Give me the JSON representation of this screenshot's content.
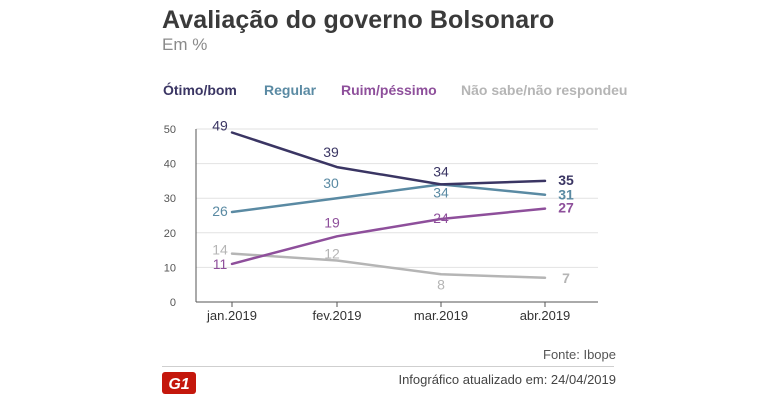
{
  "header": {
    "title": "Avaliação do governo Bolsonaro",
    "subtitle": "Em %"
  },
  "colors": {
    "otimo_bom": "#3a3563",
    "regular": "#5a8aa3",
    "ruim_pessimo": "#8e4f9b",
    "nao_sabe": "#b5b5b5",
    "brand_red": "#c4170c"
  },
  "chart_data": {
    "type": "line",
    "title": "Avaliação do governo Bolsonaro",
    "subtitle": "Em %",
    "categories": [
      "jan.2019",
      "fev.2019",
      "mar.2019",
      "abr.2019"
    ],
    "y_ticks": [
      0,
      10,
      20,
      30,
      40,
      50
    ],
    "ylim": [
      0,
      50
    ],
    "grid": true,
    "legend_position": "top",
    "series": [
      {
        "name": "Ótimo/bom",
        "color_key": "otimo_bom",
        "values": [
          49,
          39,
          34,
          35
        ],
        "labels": [
          "49",
          "39",
          "34",
          "35"
        ]
      },
      {
        "name": "Regular",
        "color_key": "regular",
        "values": [
          26,
          30,
          34,
          31
        ],
        "labels": [
          "26",
          "30",
          "34",
          "31"
        ]
      },
      {
        "name": "Ruim/péssimo",
        "color_key": "ruim_pessimo",
        "values": [
          11,
          19,
          24,
          27
        ],
        "labels": [
          "11",
          "19",
          "24",
          "27"
        ]
      },
      {
        "name": "Não sabe/não respondeu",
        "color_key": "nao_sabe",
        "values": [
          14,
          12,
          8,
          7
        ],
        "labels": [
          "14",
          "12",
          "8",
          "7"
        ]
      }
    ]
  },
  "footer": {
    "source": "Fonte: Ibope",
    "updated": "Infográfico atualizado em: 24/04/2019",
    "logo_text": "G1"
  }
}
